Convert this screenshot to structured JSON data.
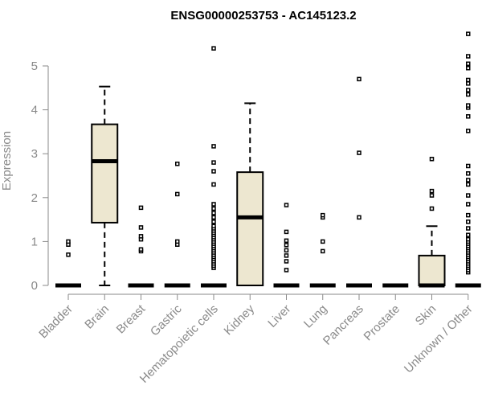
{
  "chart_data": {
    "type": "box",
    "title": "ENSG00000253753 - AC145123.2",
    "ylabel": "Expression",
    "ylim": [
      0,
      5.8
    ],
    "yticks": [
      0,
      1,
      2,
      3,
      4,
      5
    ],
    "ytick_labels": [
      "0",
      "1",
      "2",
      "3",
      "4",
      "5"
    ],
    "box_color": "#ede7d0",
    "categories": [
      "Bladder",
      "Brain",
      "Breast",
      "Gastric",
      "Hematopoietic cells",
      "Kidney",
      "Liver",
      "Lung",
      "Pancreas",
      "Prostate",
      "Skin",
      "Unknown / Other"
    ],
    "boxes": [
      {
        "q1": 0,
        "median": 0,
        "q3": 0,
        "whisker_low": 0,
        "whisker_high": 0,
        "outliers": [
          0.7,
          0.93,
          1.0
        ]
      },
      {
        "q1": 1.43,
        "median": 2.83,
        "q3": 3.67,
        "whisker_low": 0,
        "whisker_high": 4.53,
        "outliers": []
      },
      {
        "q1": 0,
        "median": 0,
        "q3": 0,
        "whisker_low": 0,
        "whisker_high": 0,
        "outliers": [
          0.78,
          0.82,
          1.05,
          1.12,
          1.32,
          1.77
        ]
      },
      {
        "q1": 0,
        "median": 0,
        "q3": 0,
        "whisker_low": 0,
        "whisker_high": 0,
        "outliers": [
          0.93,
          1.0,
          2.08,
          2.77
        ]
      },
      {
        "q1": 0,
        "median": 0,
        "q3": 0,
        "whisker_low": 0,
        "whisker_high": 0,
        "outliers": [
          0.4,
          0.45,
          0.5,
          0.55,
          0.6,
          0.65,
          0.7,
          0.75,
          0.8,
          0.85,
          0.9,
          0.95,
          1.0,
          1.05,
          1.1,
          1.15,
          1.2,
          1.25,
          1.3,
          1.35,
          1.45,
          1.55,
          1.65,
          1.75,
          1.85,
          2.3,
          2.6,
          2.8,
          3.17,
          5.4
        ]
      },
      {
        "q1": 0,
        "median": 1.55,
        "q3": 2.58,
        "whisker_low": 0,
        "whisker_high": 4.15,
        "outliers": []
      },
      {
        "q1": 0,
        "median": 0,
        "q3": 0,
        "whisker_low": 0,
        "whisker_high": 0,
        "outliers": [
          0.35,
          0.55,
          0.68,
          0.8,
          0.92,
          1.02,
          1.22,
          1.83
        ]
      },
      {
        "q1": 0,
        "median": 0,
        "q3": 0,
        "whisker_low": 0,
        "whisker_high": 0,
        "outliers": [
          0.78,
          1.0,
          1.55,
          1.6
        ]
      },
      {
        "q1": 0,
        "median": 0,
        "q3": 0,
        "whisker_low": 0,
        "whisker_high": 0,
        "outliers": [
          1.55,
          3.02,
          4.7
        ]
      },
      {
        "q1": 0,
        "median": 0,
        "q3": 0,
        "whisker_low": 0,
        "whisker_high": 0,
        "outliers": []
      },
      {
        "q1": 0,
        "median": 0,
        "q3": 0.68,
        "whisker_low": 0,
        "whisker_high": 1.35,
        "outliers": [
          1.75,
          2.05,
          2.15,
          2.88
        ]
      },
      {
        "q1": 0,
        "median": 0,
        "q3": 0,
        "whisker_low": 0,
        "whisker_high": 0,
        "outliers": [
          0.3,
          0.35,
          0.4,
          0.45,
          0.5,
          0.55,
          0.6,
          0.65,
          0.7,
          0.75,
          0.8,
          0.85,
          0.9,
          0.95,
          1.0,
          1.05,
          1.15,
          1.3,
          1.45,
          1.6,
          1.85,
          2.05,
          2.3,
          2.4,
          2.55,
          2.72,
          3.52,
          3.85,
          4.05,
          4.1,
          4.35,
          4.45,
          4.6,
          4.68,
          4.95,
          5.05,
          5.22,
          5.73
        ]
      }
    ]
  }
}
